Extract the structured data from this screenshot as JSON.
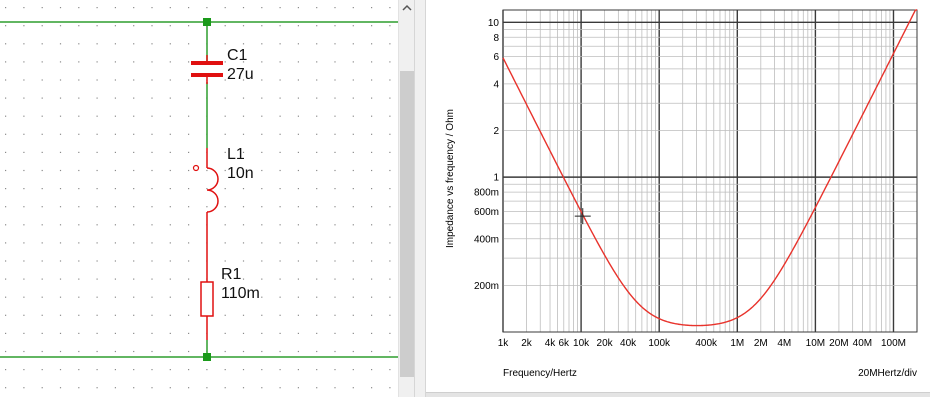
{
  "schematic": {
    "components": [
      {
        "ref": "C1",
        "value": "27u",
        "type": "capacitor"
      },
      {
        "ref": "L1",
        "value": "10n",
        "type": "inductor"
      },
      {
        "ref": "R1",
        "value": "110m",
        "type": "resistor"
      }
    ],
    "colors": {
      "wire_top_bottom": "#2e9e2e",
      "component": "#e01010",
      "grid_dot": "#8a8a8a",
      "node": "#1a9a1a"
    }
  },
  "chart_data": {
    "type": "line",
    "xlabel": "Frequency/Hertz",
    "ylabel": "Impedance vs frequency / Ohm",
    "x_scale": "log",
    "y_scale": "log",
    "xlim": [
      1000,
      200000000
    ],
    "ylim": [
      0.1,
      12
    ],
    "x_ticks": [
      {
        "value": 1000,
        "label": "1k"
      },
      {
        "value": 2000,
        "label": "2k"
      },
      {
        "value": 4000,
        "label": "4k"
      },
      {
        "value": 6000,
        "label": "6k"
      },
      {
        "value": 10000,
        "label": "10k"
      },
      {
        "value": 20000,
        "label": "20k"
      },
      {
        "value": 40000,
        "label": "40k"
      },
      {
        "value": 100000,
        "label": "100k"
      },
      {
        "value": 400000,
        "label": "400k"
      },
      {
        "value": 1000000,
        "label": "1M"
      },
      {
        "value": 2000000,
        "label": "2M"
      },
      {
        "value": 4000000,
        "label": "4M"
      },
      {
        "value": 10000000,
        "label": "10M"
      },
      {
        "value": 20000000,
        "label": "20M"
      },
      {
        "value": 40000000,
        "label": "40M"
      },
      {
        "value": 100000000,
        "label": "100M"
      }
    ],
    "y_ticks": [
      {
        "value": 0.2,
        "label": "200m"
      },
      {
        "value": 0.4,
        "label": "400m"
      },
      {
        "value": 0.6,
        "label": "600m"
      },
      {
        "value": 0.8,
        "label": "800m"
      },
      {
        "value": 1,
        "label": "1"
      },
      {
        "value": 2,
        "label": "2"
      },
      {
        "value": 4,
        "label": "4"
      },
      {
        "value": 6,
        "label": "6"
      },
      {
        "value": 8,
        "label": "8"
      },
      {
        "value": 10,
        "label": "10"
      }
    ],
    "x_div_label": "20MHertz/div",
    "series": [
      {
        "color": "#e8332c",
        "model": "series RLC",
        "R": 0.11,
        "L": 1e-08,
        "C": 2.7e-05
      }
    ],
    "cursor": {
      "x": 10500,
      "y": 0.56
    },
    "grid": true
  }
}
